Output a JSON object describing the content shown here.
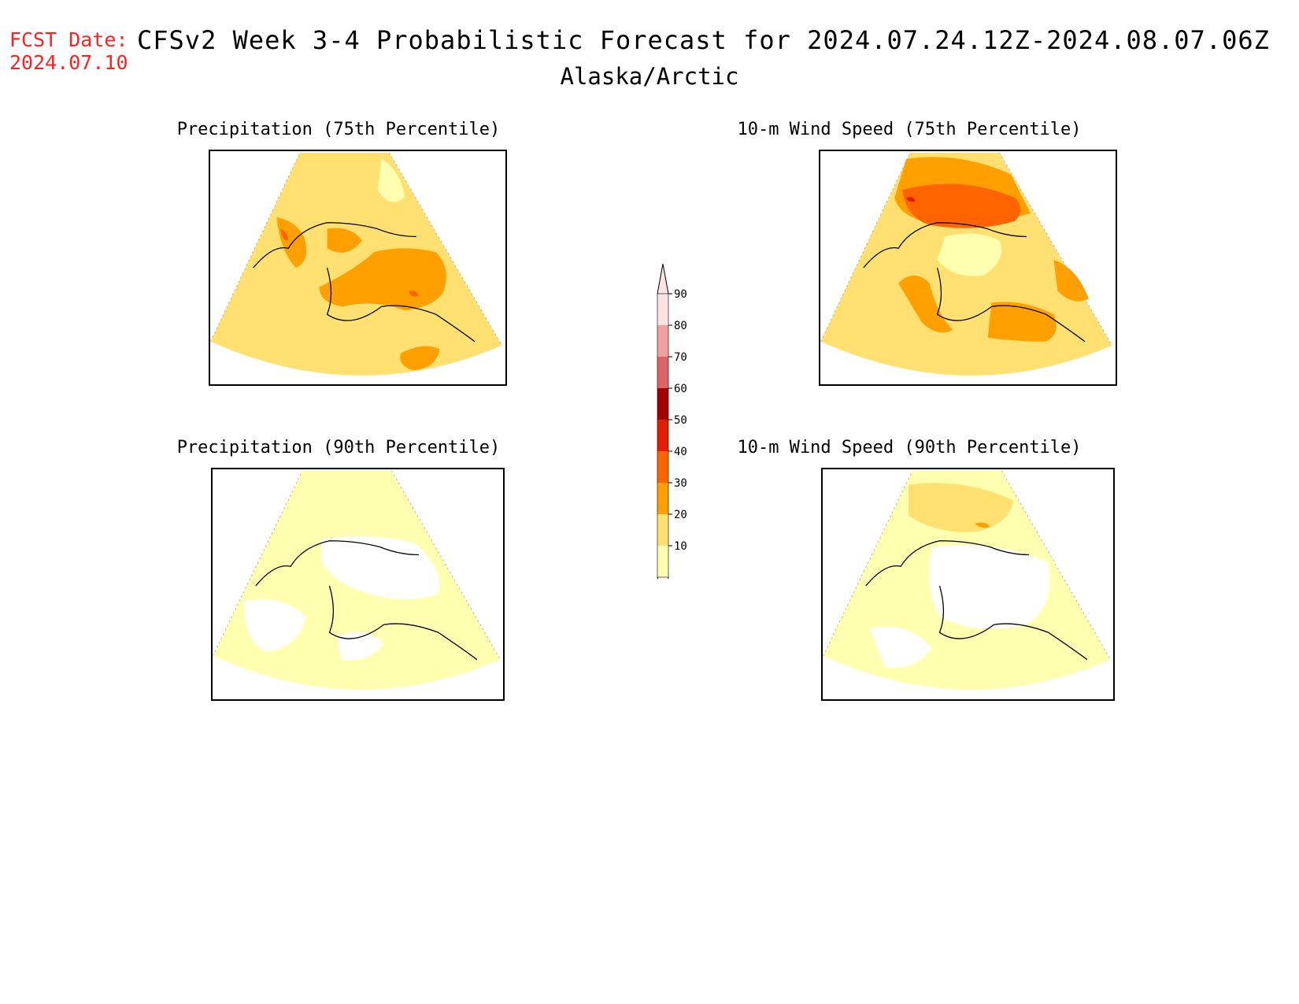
{
  "header": {
    "fcst_label": "FCST Date:",
    "fcst_date": "2024.07.10",
    "title": "CFSv2 Week 3-4 Probabilistic Forecast for 2024.07.24.12Z-2024.08.07.06Z",
    "region": "Alaska/Arctic"
  },
  "panels": [
    {
      "id": "precip75",
      "title": "Precipitation (75th Percentile)"
    },
    {
      "id": "wind75",
      "title": "10-m Wind Speed (75th Percentile)"
    },
    {
      "id": "precip90",
      "title": "Precipitation (90th Percentile)"
    },
    {
      "id": "wind90",
      "title": "10-m Wind Speed (90th Percentile)"
    }
  ],
  "colorbar": {
    "levels": [
      "90",
      "80",
      "70",
      "60",
      "50",
      "40",
      "30",
      "20",
      "10"
    ],
    "colors": [
      "#fde2e2",
      "#f0a0a0",
      "#dc6464",
      "#a00000",
      "#e01e00",
      "#ff6400",
      "#ffa000",
      "#ffe070",
      "#ffffb0"
    ]
  },
  "palette": {
    "fill_light": "#ffffb0",
    "fill_base": "#ffe070",
    "fill_orange": "#ffa000",
    "fill_dark_orange": "#ff6400",
    "fill_red": "#e01e00"
  }
}
